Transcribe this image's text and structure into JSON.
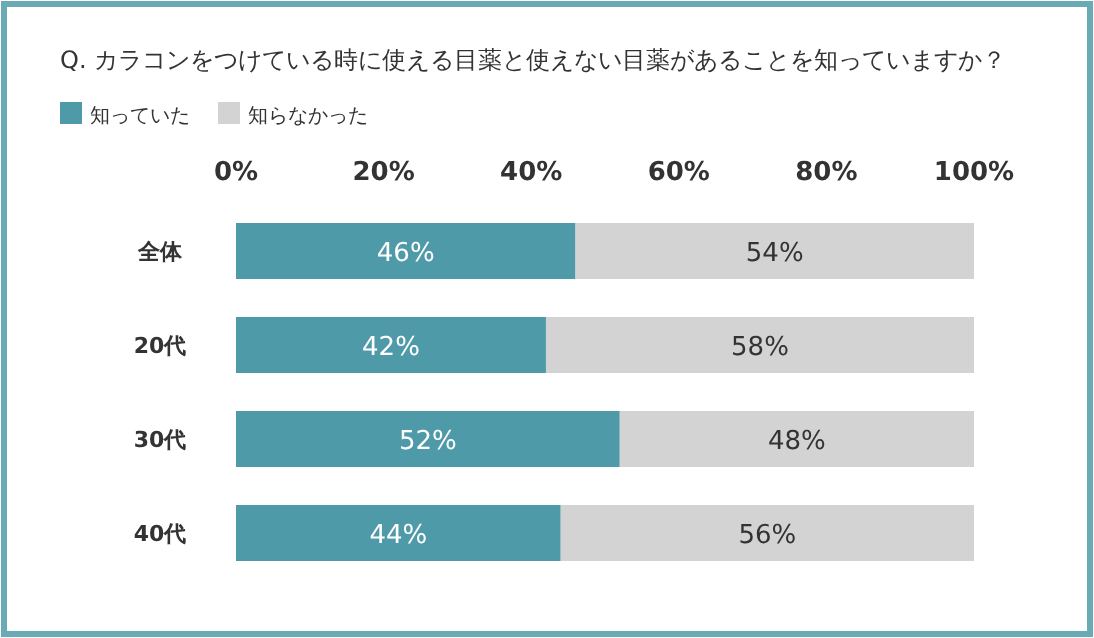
{
  "chart_data": {
    "type": "bar",
    "orientation": "horizontal",
    "stacked": true,
    "title": "Q. カラコンをつけている時に使える目薬と使えない目薬があることを知っていますか？",
    "categories": [
      "全体",
      "20代",
      "30代",
      "40代"
    ],
    "series": [
      {
        "name": "知っていた",
        "color": "#4f9aa8",
        "values": [
          46,
          42,
          52,
          44
        ],
        "value_labels": [
          "46%",
          "42%",
          "52%",
          "44%"
        ]
      },
      {
        "name": "知らなかった",
        "color": "#d3d3d3",
        "values": [
          54,
          58,
          48,
          56
        ],
        "value_labels": [
          "54%",
          "58%",
          "48%",
          "56%"
        ]
      }
    ],
    "xlim": [
      0,
      100
    ],
    "xticks": [
      {
        "value": 0,
        "label": "0%"
      },
      {
        "value": 20,
        "label": "20%"
      },
      {
        "value": 40,
        "label": "40%"
      },
      {
        "value": 60,
        "label": "60%"
      },
      {
        "value": 80,
        "label": "80%"
      },
      {
        "value": 100,
        "label": "100%"
      }
    ],
    "legend": "top left",
    "grid": false
  }
}
